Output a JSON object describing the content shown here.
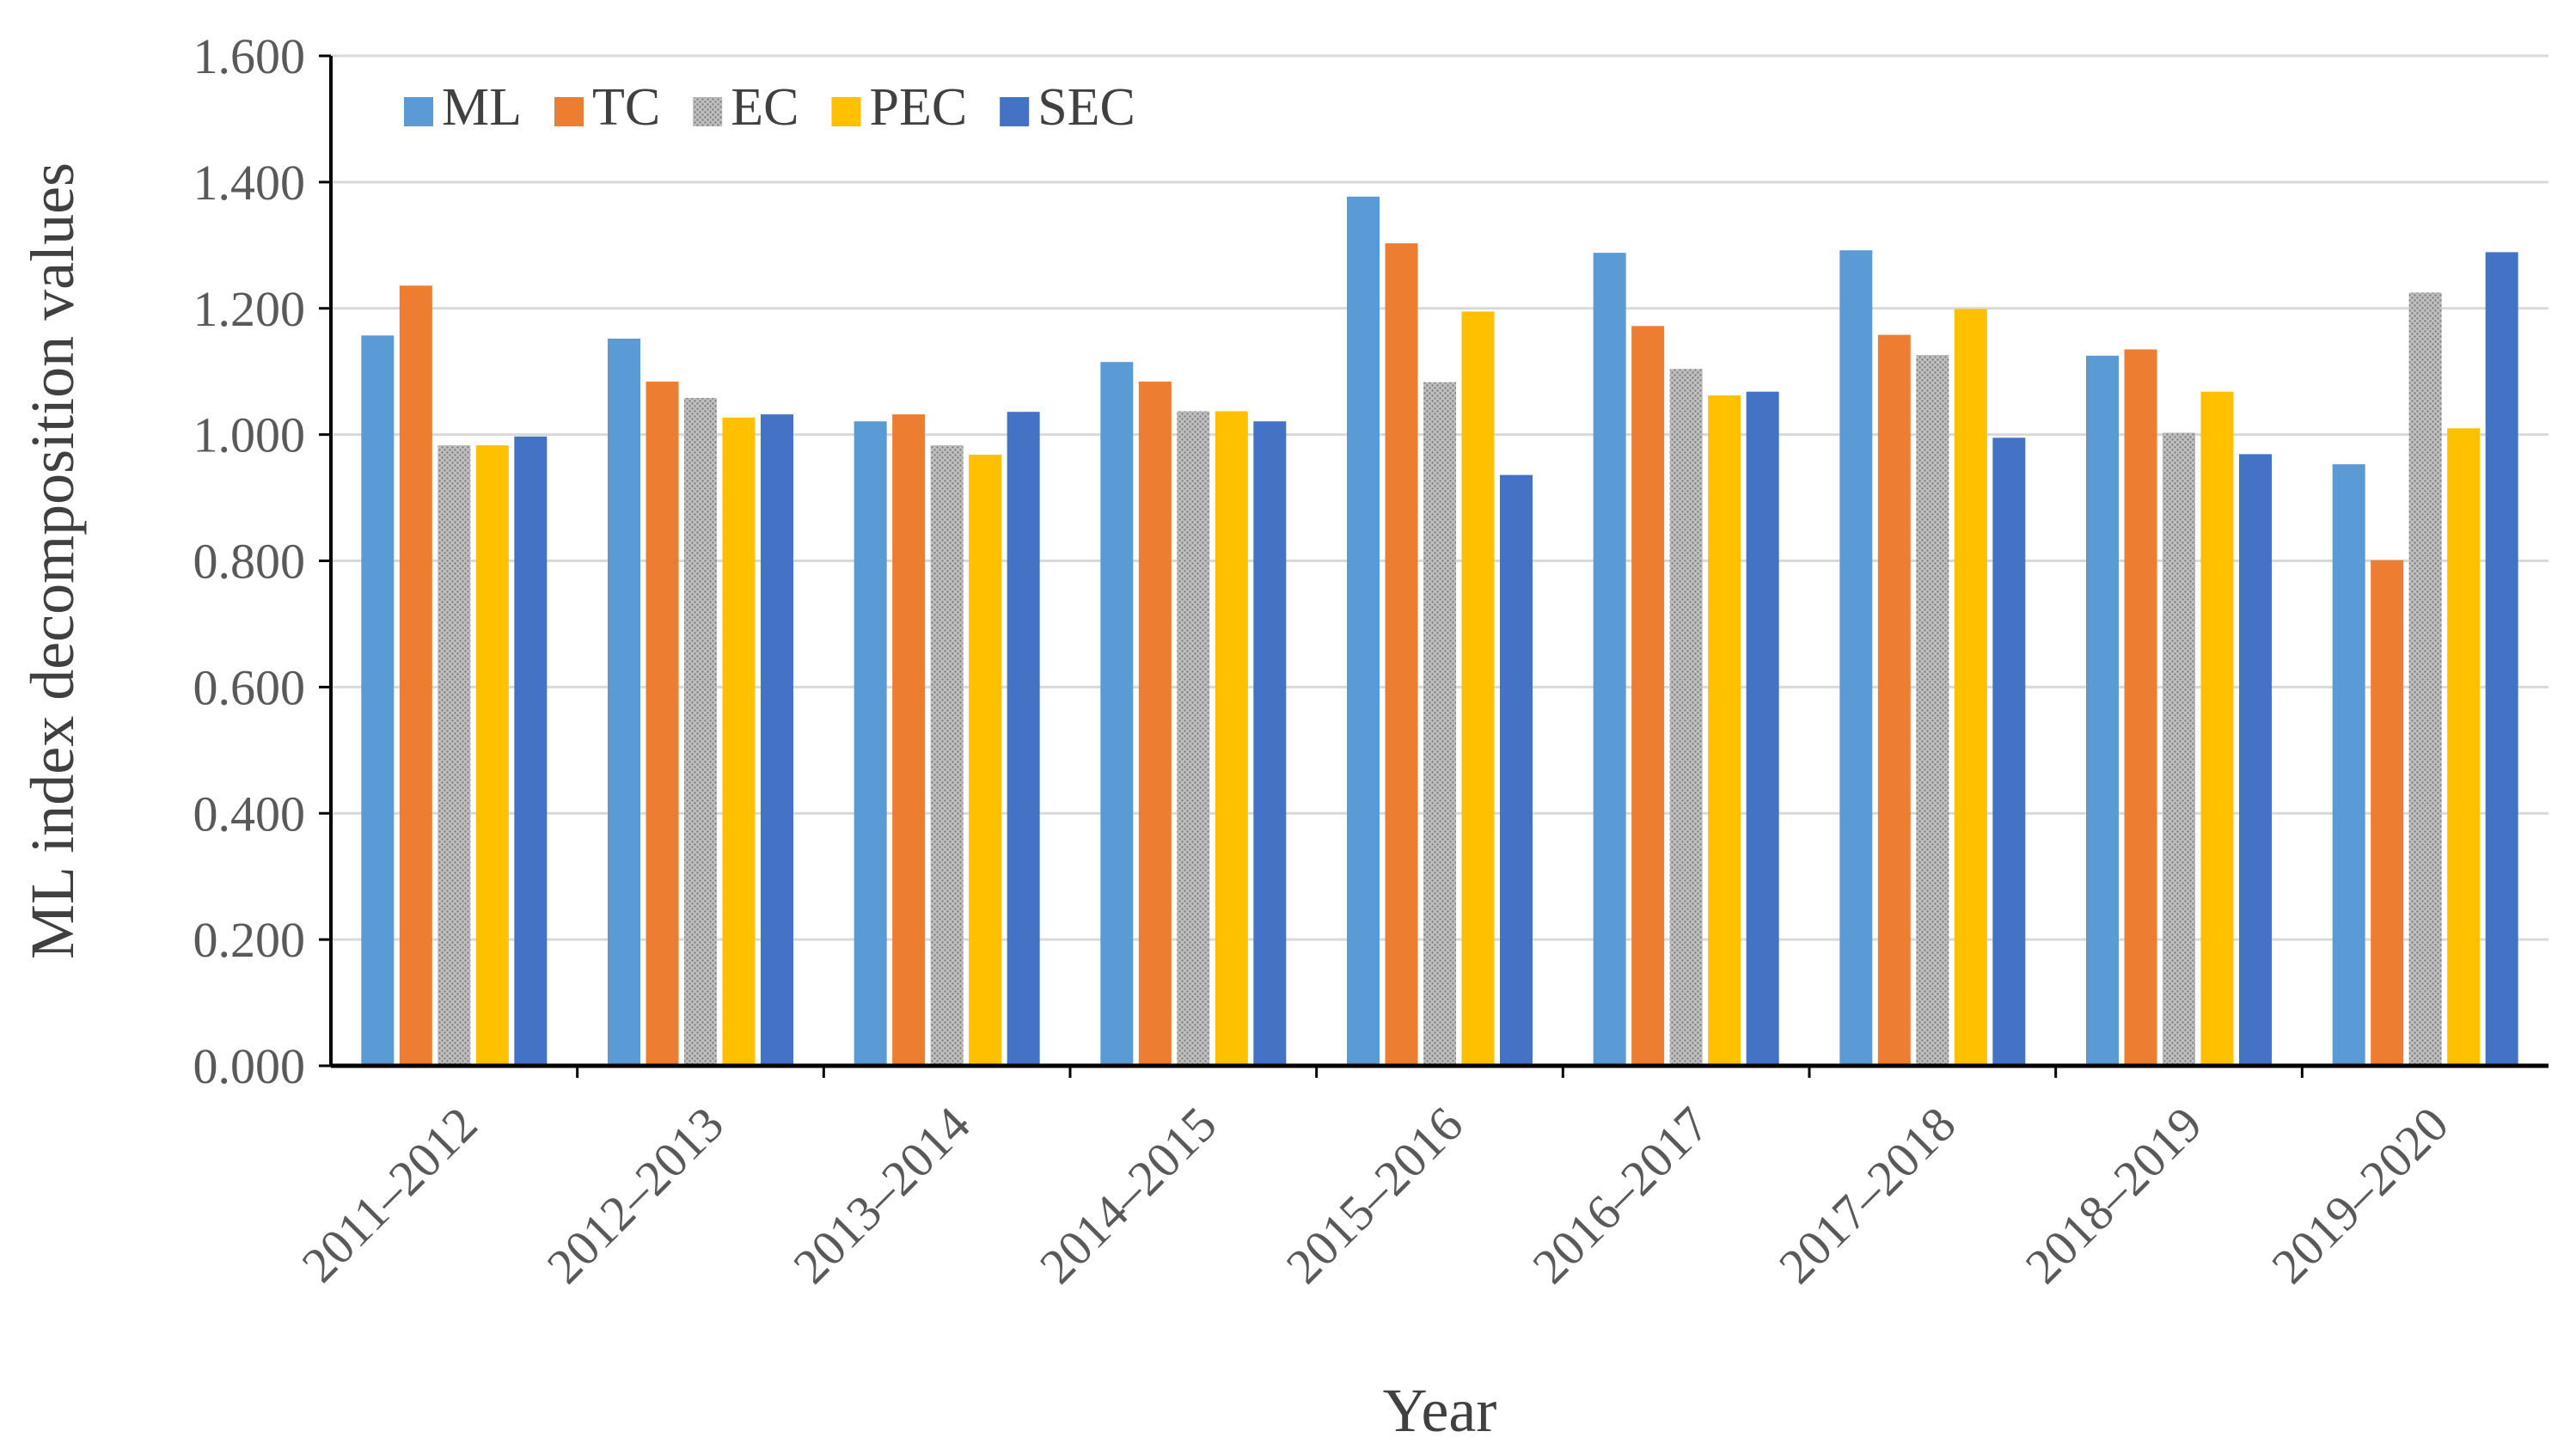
{
  "chart_data": {
    "type": "bar",
    "title": "",
    "xlabel": "Year",
    "ylabel": "ML index decomposition values",
    "ylim": [
      0,
      1.6
    ],
    "yticks": [
      "0.000",
      "0.200",
      "0.400",
      "0.600",
      "0.800",
      "1.000",
      "1.200",
      "1.400",
      "1.600"
    ],
    "grid": true,
    "legend_position": "top-left",
    "categories": [
      "2011–2012",
      "2012–2013",
      "2013–2014",
      "2014–2015",
      "2015–2016",
      "2016–2017",
      "2017–2018",
      "2018–2019",
      "2019–2020"
    ],
    "series": [
      {
        "name": "ML",
        "color": "#5b9bd5",
        "pattern": "solid",
        "values": [
          1.157,
          1.152,
          1.021,
          1.115,
          1.377,
          1.288,
          1.292,
          1.125,
          0.953
        ]
      },
      {
        "name": "TC",
        "color": "#ed7d31",
        "pattern": "solid",
        "values": [
          1.236,
          1.084,
          1.032,
          1.084,
          1.303,
          1.172,
          1.158,
          1.135,
          0.801
        ]
      },
      {
        "name": "EC",
        "color": "#a5a5a5",
        "pattern": "dotted",
        "values": [
          0.983,
          1.058,
          0.983,
          1.037,
          1.083,
          1.104,
          1.126,
          1.003,
          1.225
        ]
      },
      {
        "name": "PEC",
        "color": "#ffc000",
        "pattern": "solid",
        "values": [
          0.983,
          1.027,
          0.968,
          1.037,
          1.195,
          1.062,
          1.199,
          1.068,
          1.01
        ]
      },
      {
        "name": "SEC",
        "color": "#4472c4",
        "pattern": "solid",
        "values": [
          0.997,
          1.032,
          1.036,
          1.021,
          0.936,
          1.068,
          0.995,
          0.969,
          1.289
        ]
      }
    ]
  }
}
